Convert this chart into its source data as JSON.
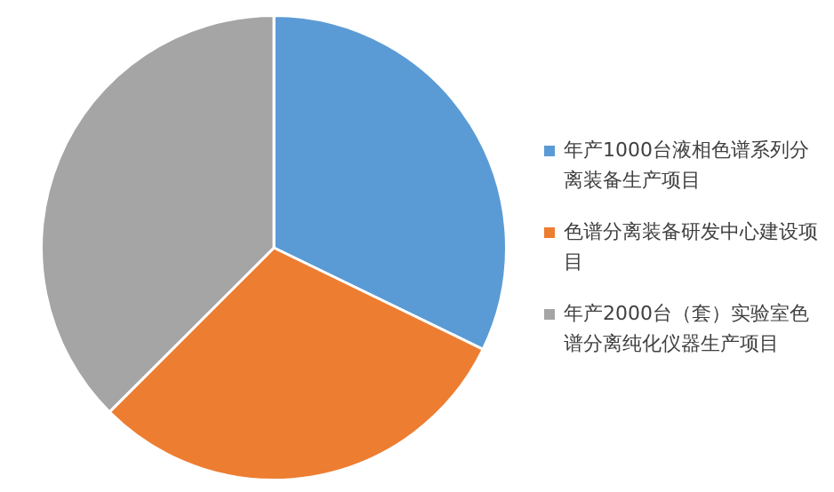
{
  "chart_data": {
    "type": "pie",
    "categories": [
      "年产1000台液相色谱系列分离装备生产项目",
      "色谱分离装备研发中心建设项目",
      "年产2000台（套）实验室色谱分离纯化仪器生产项目"
    ],
    "values": [
      32.2,
      30.3,
      37.5
    ],
    "colors": [
      "#5b9bd5",
      "#ed7d31",
      "#a5a5a5"
    ],
    "legend": "right"
  }
}
